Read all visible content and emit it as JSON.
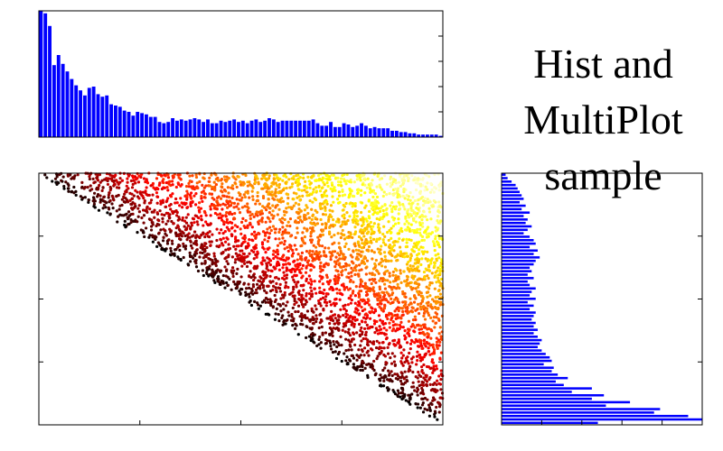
{
  "title": {
    "lines": [
      "Hist and",
      "MultiPlot",
      "sample"
    ]
  },
  "colors": {
    "bar": "#0000ff",
    "axis": "#000000",
    "scatter_colormap": "hot",
    "scatter_low": "#000000",
    "scatter_mid": "#e00000",
    "scatter_high": "#ffff00"
  },
  "chart_data": [
    {
      "id": "top-histogram",
      "type": "bar",
      "orientation": "vertical",
      "xlim": [
        0,
        1
      ],
      "ylim": [
        0,
        1
      ],
      "grid": false,
      "legend": "none",
      "values": [
        1.0,
        0.98,
        0.88,
        0.57,
        0.65,
        0.58,
        0.52,
        0.46,
        0.41,
        0.37,
        0.33,
        0.39,
        0.4,
        0.34,
        0.32,
        0.33,
        0.26,
        0.25,
        0.24,
        0.21,
        0.2,
        0.17,
        0.2,
        0.19,
        0.18,
        0.16,
        0.16,
        0.12,
        0.11,
        0.12,
        0.15,
        0.13,
        0.14,
        0.13,
        0.14,
        0.15,
        0.14,
        0.12,
        0.14,
        0.11,
        0.11,
        0.13,
        0.12,
        0.13,
        0.14,
        0.12,
        0.13,
        0.11,
        0.13,
        0.14,
        0.12,
        0.13,
        0.15,
        0.14,
        0.12,
        0.13,
        0.13,
        0.13,
        0.13,
        0.13,
        0.13,
        0.13,
        0.14,
        0.11,
        0.09,
        0.09,
        0.12,
        0.08,
        0.08,
        0.11,
        0.1,
        0.08,
        0.09,
        0.11,
        0.09,
        0.07,
        0.08,
        0.07,
        0.07,
        0.07,
        0.05,
        0.05,
        0.04,
        0.04,
        0.03,
        0.03,
        0.02,
        0.02,
        0.02,
        0.02,
        0.02,
        0.01
      ]
    },
    {
      "id": "scatter",
      "type": "scatter",
      "xlim": [
        0,
        1
      ],
      "ylim": [
        0,
        1
      ],
      "grid": false,
      "legend": "none",
      "point_count": 4000,
      "region": "points fill the triangle y >= 1 - x",
      "color_encoding": "hot colormap; black near the diagonal edge, red in the middle, yellow toward the top and right edges"
    },
    {
      "id": "right-histogram",
      "type": "bar",
      "orientation": "horizontal",
      "xlim": [
        0,
        1
      ],
      "ylim": [
        0,
        1
      ],
      "grid": false,
      "legend": "none",
      "values_top_to_bottom": [
        0.02,
        0.03,
        0.05,
        0.07,
        0.08,
        0.09,
        0.1,
        0.11,
        0.09,
        0.12,
        0.1,
        0.14,
        0.11,
        0.13,
        0.12,
        0.15,
        0.13,
        0.11,
        0.14,
        0.16,
        0.17,
        0.14,
        0.18,
        0.16,
        0.19,
        0.17,
        0.16,
        0.14,
        0.15,
        0.13,
        0.16,
        0.13,
        0.14,
        0.17,
        0.15,
        0.14,
        0.17,
        0.13,
        0.16,
        0.14,
        0.17,
        0.16,
        0.15,
        0.17,
        0.16,
        0.18,
        0.16,
        0.18,
        0.2,
        0.19,
        0.18,
        0.2,
        0.22,
        0.24,
        0.25,
        0.21,
        0.26,
        0.25,
        0.28,
        0.33,
        0.27,
        0.31,
        0.45,
        0.35,
        0.51,
        0.45,
        0.64,
        0.52,
        0.79,
        0.76,
        0.93,
        1.0,
        0.48
      ]
    }
  ]
}
